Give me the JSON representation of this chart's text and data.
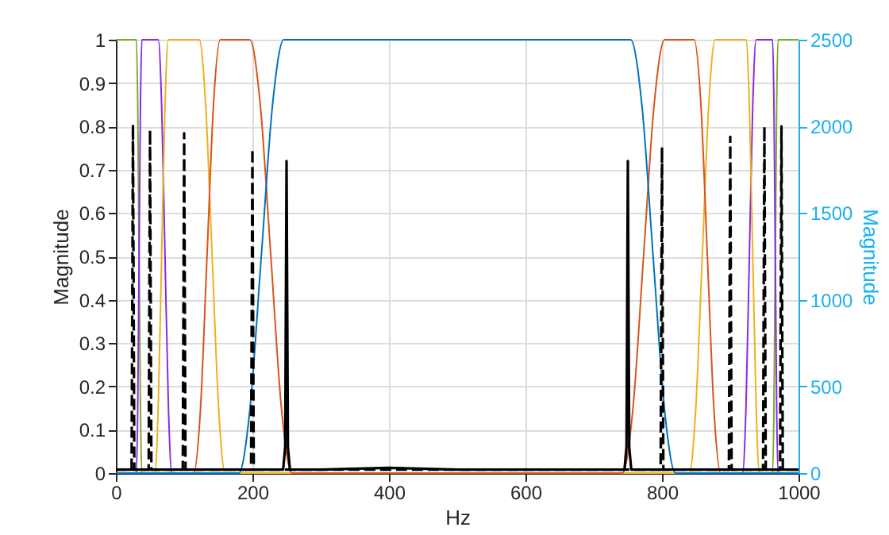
{
  "chart_data": {
    "type": "line",
    "xlabel": "Hz",
    "ylabel": "Magnitude",
    "y2label": "Magnitude",
    "xlim": [
      0,
      1000
    ],
    "xticks": [
      0,
      200,
      400,
      600,
      800,
      1000
    ],
    "ylim": [
      0,
      1
    ],
    "yticks": [
      0,
      0.1,
      0.2,
      0.3,
      0.4,
      0.5,
      0.6,
      0.7,
      0.8,
      0.9,
      1
    ],
    "y2lim": [
      0,
      2500
    ],
    "y2ticks": [
      0,
      500,
      1000,
      1500,
      2000,
      2500
    ],
    "grid": true,
    "marker": "none",
    "series": [
      {
        "color": "#77ac30",
        "line_style": "solid",
        "x": [
          0,
          30,
          32,
          34,
          36,
          38,
          962,
          964,
          966,
          968,
          970,
          1000
        ],
        "values": [
          1,
          1,
          0.85,
          0.5,
          0.15,
          0,
          0,
          0.15,
          0.5,
          0.85,
          1,
          1
        ]
      },
      {
        "color": "#8b2be2",
        "line_style": "solid",
        "x": [
          0,
          30,
          32,
          34,
          36,
          38,
          62,
          67,
          72,
          77,
          82,
          918,
          923,
          928,
          933,
          938,
          962,
          964,
          966,
          968,
          970,
          1000
        ],
        "values": [
          0,
          0,
          0.15,
          0.5,
          0.85,
          1,
          1,
          0.85,
          0.5,
          0.15,
          0,
          0,
          0.15,
          0.5,
          0.85,
          1,
          1,
          0.85,
          0.5,
          0.15,
          0,
          0
        ]
      },
      {
        "color": "#edb120",
        "line_style": "solid",
        "x": [
          0,
          57,
          62,
          67,
          72,
          77,
          122,
          131.5,
          141,
          150.5,
          160,
          840,
          849.5,
          859,
          868.5,
          878,
          923,
          928,
          933,
          938,
          943,
          1000
        ],
        "values": [
          0,
          0,
          0.15,
          0.5,
          0.85,
          1,
          1,
          0.85,
          0.5,
          0.15,
          0,
          0,
          0.15,
          0.5,
          0.85,
          1,
          1,
          0.85,
          0.5,
          0.15,
          0,
          0
        ]
      },
      {
        "color": "#d95319",
        "line_style": "solid",
        "x": [
          0,
          114,
          124,
          133.5,
          143,
          153,
          196,
          211.5,
          227,
          242.5,
          258,
          742,
          757.5,
          773,
          788.5,
          804,
          847,
          857,
          866.5,
          876,
          886,
          1000
        ],
        "values": [
          0,
          0,
          0.15,
          0.5,
          0.85,
          1,
          1,
          0.85,
          0.5,
          0.15,
          0,
          0,
          0.15,
          0.5,
          0.85,
          1,
          1,
          0.85,
          0.5,
          0.15,
          0,
          0
        ]
      },
      {
        "color": "#0072bd",
        "line_style": "solid",
        "x": [
          0,
          180,
          196.5,
          213,
          229.5,
          246,
          754,
          770.5,
          787,
          803.5,
          820,
          1000
        ],
        "values": [
          0,
          0,
          0.15,
          0.5,
          0.85,
          1,
          1,
          0.85,
          0.5,
          0.15,
          0,
          0
        ]
      },
      {
        "color": "#000000",
        "axis": "y2",
        "line_style": "dashed",
        "x": [
          0,
          23,
          25,
          27,
          48,
          50,
          52,
          98,
          100,
          102,
          198,
          200,
          202,
          798,
          800,
          802,
          898,
          900,
          902,
          948,
          950,
          952,
          973,
          975,
          977,
          1000
        ],
        "values": [
          20,
          20,
          2010,
          20,
          20,
          1980,
          20,
          20,
          1960,
          20,
          20,
          1870,
          20,
          20,
          1880,
          20,
          20,
          1940,
          20,
          20,
          2000,
          20,
          20,
          2000,
          20,
          20
        ]
      },
      {
        "color": "#000000",
        "axis": "y2",
        "line_style": "solid",
        "x": [
          0,
          100,
          200,
          245,
          248,
          250,
          252,
          255,
          300,
          400,
          500,
          600,
          700,
          745,
          748,
          750,
          752,
          755,
          800,
          900,
          1000
        ],
        "values": [
          20,
          20,
          20,
          20,
          150,
          1800,
          150,
          20,
          20,
          30,
          20,
          20,
          20,
          20,
          150,
          1800,
          150,
          20,
          20,
          20,
          20
        ]
      }
    ]
  }
}
